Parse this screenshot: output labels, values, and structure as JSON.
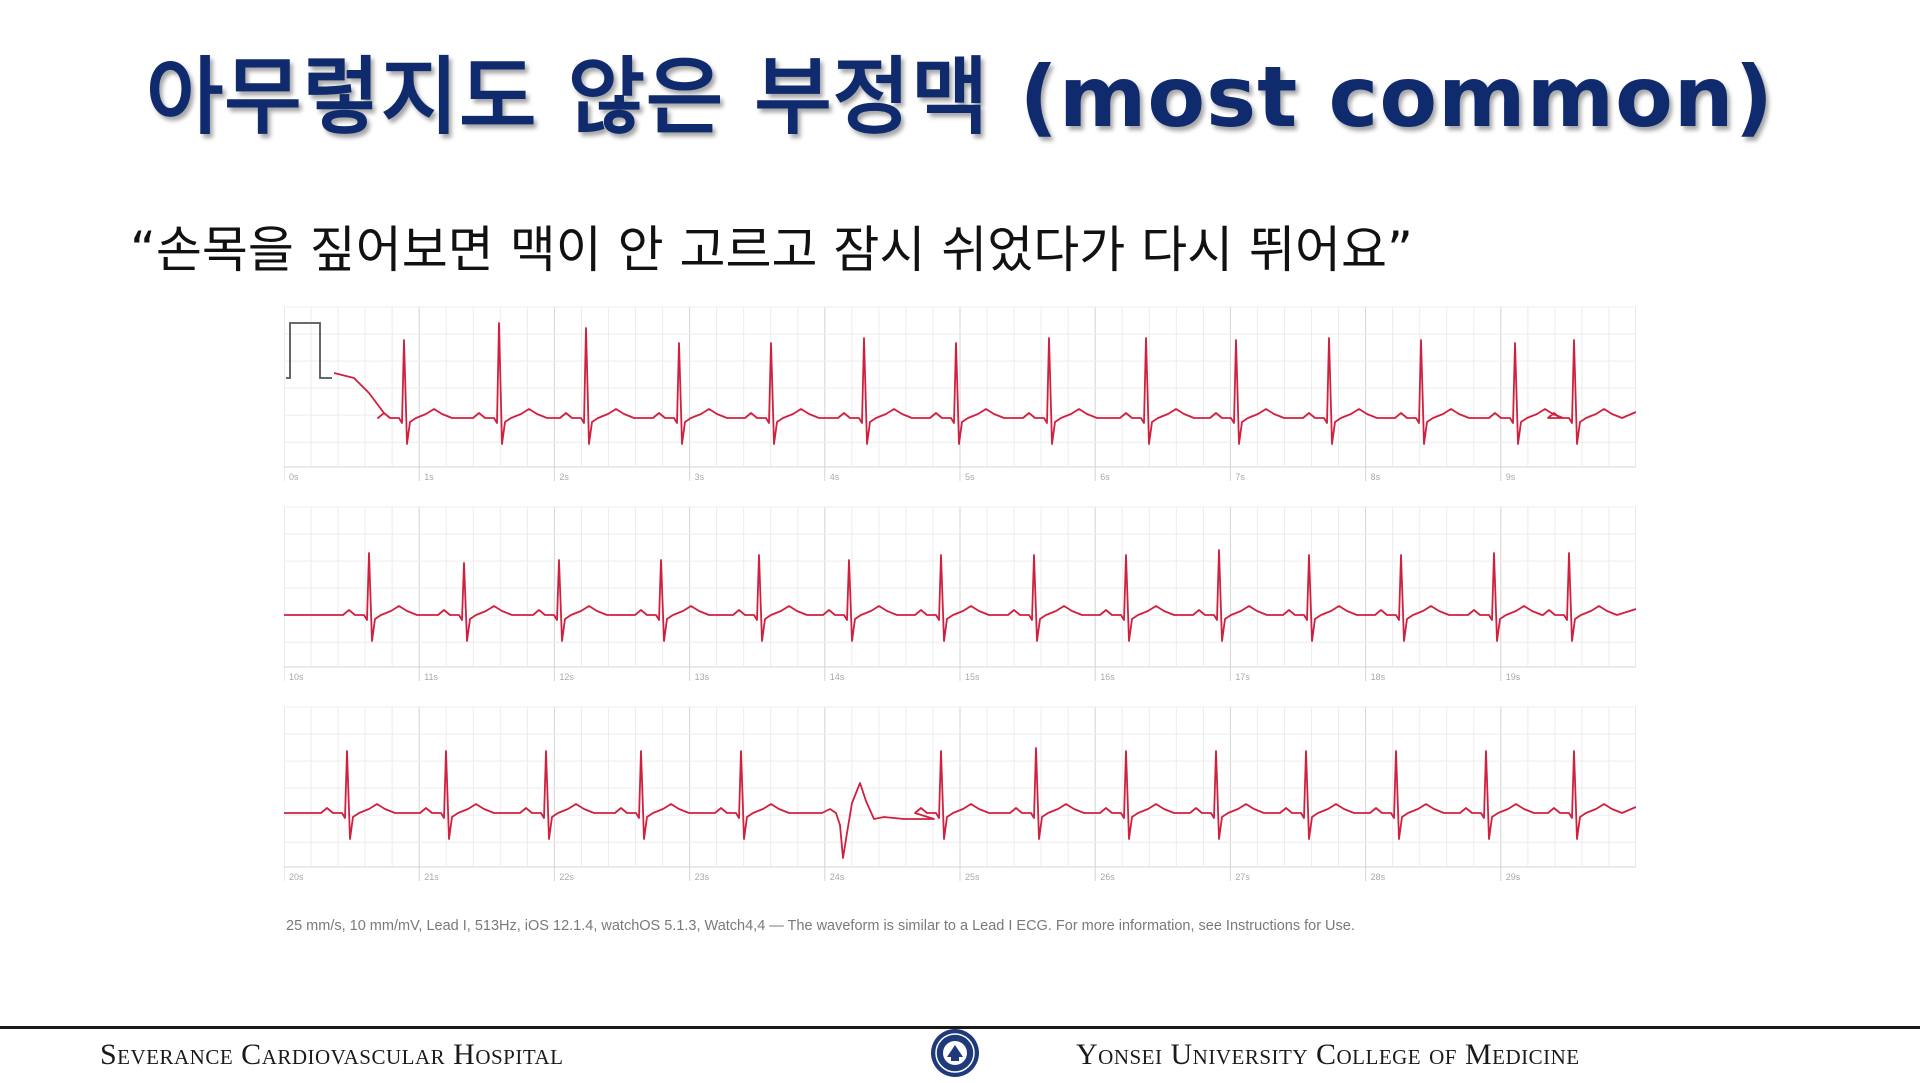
{
  "slide": {
    "title": "아무렇지도 않은 부정맥 (most common)",
    "quote": "“손목을 짚어보면 맥이 안 고르고 잠시 쉬었다가 다시 뛰어요”"
  },
  "ecg": {
    "strips": [
      {
        "time_labels": [
          "0s",
          "1s",
          "2s",
          "3s",
          "4s",
          "5s",
          "6s",
          "7s",
          "8s",
          "9s"
        ]
      },
      {
        "time_labels": [
          "10s",
          "11s",
          "12s",
          "13s",
          "14s",
          "15s",
          "16s",
          "17s",
          "18s",
          "19s"
        ]
      },
      {
        "time_labels": [
          "20s",
          "21s",
          "22s",
          "23s",
          "24s",
          "25s",
          "26s",
          "27s",
          "28s",
          "29s"
        ]
      }
    ],
    "caption": "25 mm/s, 10 mm/mV, Lead I, 513Hz, iOS 12.1.4, watchOS 5.1.3, Watch4,4 — The waveform is similar to a Lead I ECG. For more information, see Instructions for Use.",
    "colors": {
      "grid_minor": "#ececec",
      "grid_major": "#d4d4d4",
      "trace": "#d0203f",
      "calibration": "#555555"
    }
  },
  "footer": {
    "left": "Severance Cardiovascular Hospital",
    "right": "Yonsei University College of Medicine",
    "seal_icon": "university-seal-icon"
  }
}
